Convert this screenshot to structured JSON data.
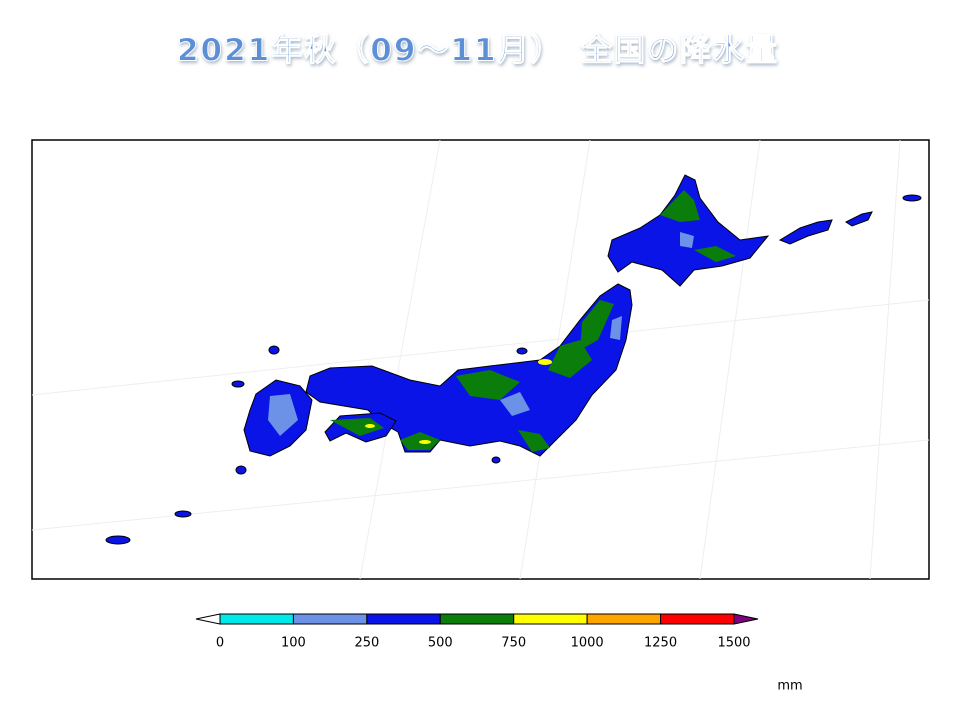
{
  "header": {
    "title": "2021年秋（09～11月）　全国の降水量"
  },
  "colorbar": {
    "ticks": [
      0,
      100,
      250,
      500,
      750,
      1000,
      1250,
      1500
    ],
    "colors": [
      "#00e8e8",
      "#6b92e6",
      "#0a14e6",
      "#0a7d0a",
      "#ffff00",
      "#ffa500",
      "#ff0000"
    ],
    "under_color": "#ffffff",
    "over_color": "#800080",
    "unit": "mm"
  }
}
